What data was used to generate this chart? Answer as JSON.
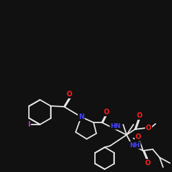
{
  "background_color": "#111111",
  "bond_color": "#e8e8e8",
  "atom_colors": {
    "O": "#ff2020",
    "N": "#4444ff",
    "I": "#cc44cc",
    "H": "#e8e8e8",
    "C": "#e8e8e8"
  },
  "figsize": [
    2.5,
    2.5
  ],
  "dpi": 100
}
